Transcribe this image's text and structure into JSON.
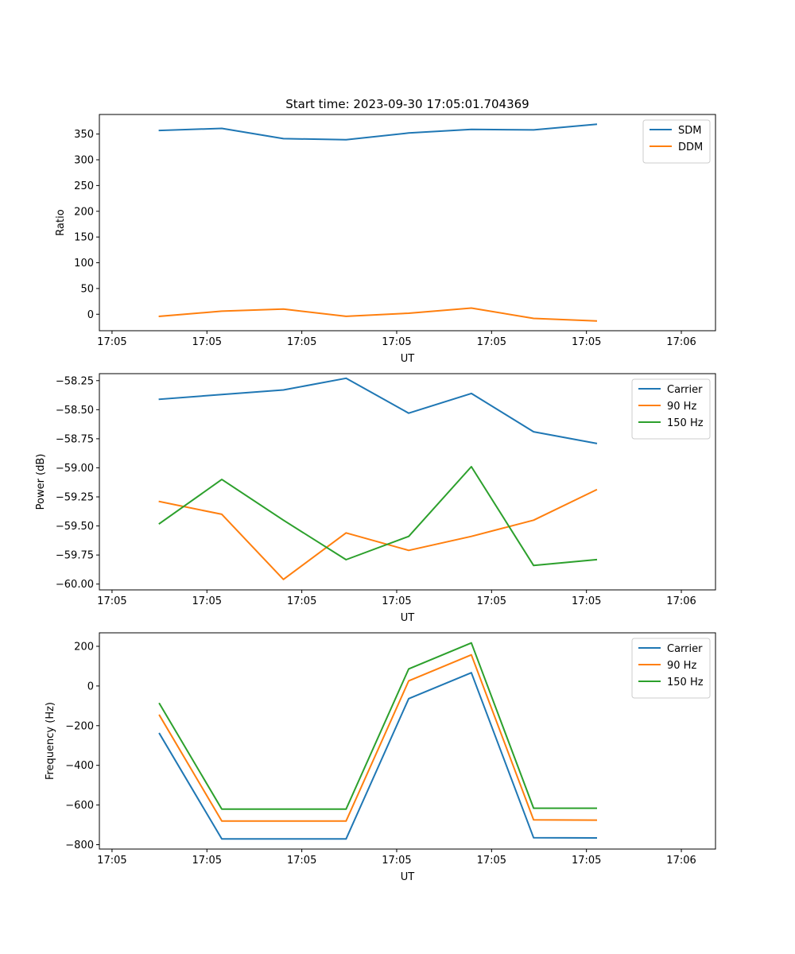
{
  "chart_data": [
    {
      "type": "line",
      "title": "Start time: 2023-09-30 17:05:01.704369",
      "xlabel": "UT",
      "ylabel": "Ratio",
      "xlim": [
        0,
        19.48
      ],
      "ylim": [
        -32,
        388
      ],
      "x_ticks": [
        0.4,
        3.4,
        6.4,
        9.4,
        12.4,
        15.4,
        18.4
      ],
      "x_tick_labels": [
        "17:05",
        "17:05",
        "17:05",
        "17:05",
        "17:05",
        "17:05",
        "17:06"
      ],
      "y_ticks": [
        0,
        50,
        100,
        150,
        200,
        250,
        300,
        350
      ],
      "legend": "top-right",
      "x": [
        1.9,
        3.87,
        5.82,
        7.8,
        9.78,
        11.76,
        13.73,
        15.71
      ],
      "series": [
        {
          "name": "SDM",
          "color": "#1f77b4",
          "values": [
            357,
            361,
            341,
            339,
            352,
            359,
            358,
            369
          ]
        },
        {
          "name": "DDM",
          "color": "#ff7f0e",
          "values": [
            -4,
            6,
            10,
            -4,
            2,
            12,
            -8,
            -13
          ]
        }
      ]
    },
    {
      "type": "line",
      "title": "",
      "xlabel": "UT",
      "ylabel": "Power (dB)",
      "xlim": [
        0,
        19.48
      ],
      "ylim": [
        -60.05,
        -58.19
      ],
      "x_ticks": [
        0.4,
        3.4,
        6.4,
        9.4,
        12.4,
        15.4,
        18.4
      ],
      "x_tick_labels": [
        "17:05",
        "17:05",
        "17:05",
        "17:05",
        "17:05",
        "17:05",
        "17:06"
      ],
      "y_ticks": [
        -60.0,
        -59.75,
        -59.5,
        -59.25,
        -59.0,
        -58.75,
        -58.5,
        -58.25
      ],
      "y_tick_labels": [
        "−60.00",
        "−59.75",
        "−59.50",
        "−59.25",
        "−59.00",
        "−58.75",
        "−58.50",
        "−58.25"
      ],
      "legend": "top-right",
      "x": [
        1.9,
        3.87,
        5.82,
        7.8,
        9.78,
        11.76,
        13.73,
        15.71
      ],
      "series": [
        {
          "name": "Carrier",
          "color": "#1f77b4",
          "values": [
            -58.41,
            -58.37,
            -58.33,
            -58.23,
            -58.53,
            -58.36,
            -58.69,
            -58.79
          ]
        },
        {
          "name": "90 Hz",
          "color": "#ff7f0e",
          "values": [
            -59.29,
            -59.4,
            -59.96,
            -59.56,
            -59.71,
            -59.59,
            -59.45,
            -59.19
          ]
        },
        {
          "name": "150 Hz",
          "color": "#2ca02c",
          "values": [
            -59.48,
            -59.1,
            -59.45,
            -59.79,
            -59.59,
            -58.99,
            -59.84,
            -59.79
          ]
        }
      ]
    },
    {
      "type": "line",
      "title": "",
      "xlabel": "UT",
      "ylabel": "Frequency (Hz)",
      "xlim": [
        0,
        19.48
      ],
      "ylim": [
        -822,
        268
      ],
      "x_ticks": [
        0.4,
        3.4,
        6.4,
        9.4,
        12.4,
        15.4,
        18.4
      ],
      "x_tick_labels": [
        "17:05",
        "17:05",
        "17:05",
        "17:05",
        "17:05",
        "17:05",
        "17:06"
      ],
      "y_ticks": [
        -800,
        -600,
        -400,
        -200,
        0,
        200
      ],
      "y_tick_labels": [
        "−800",
        "−600",
        "−400",
        "−200",
        "0",
        "200"
      ],
      "legend": "top-right",
      "x": [
        1.9,
        3.87,
        5.82,
        7.8,
        9.78,
        11.76,
        13.73,
        15.71
      ],
      "series": [
        {
          "name": "Carrier",
          "color": "#1f77b4",
          "values": [
            -240,
            -771,
            -771,
            -771,
            -64,
            67,
            -765,
            -766
          ]
        },
        {
          "name": "90 Hz",
          "color": "#ff7f0e",
          "values": [
            -148,
            -681,
            -681,
            -681,
            26,
            157,
            -675,
            -676
          ]
        },
        {
          "name": "150 Hz",
          "color": "#2ca02c",
          "values": [
            -89,
            -621,
            -621,
            -621,
            86,
            217,
            -616,
            -616
          ]
        }
      ]
    }
  ]
}
